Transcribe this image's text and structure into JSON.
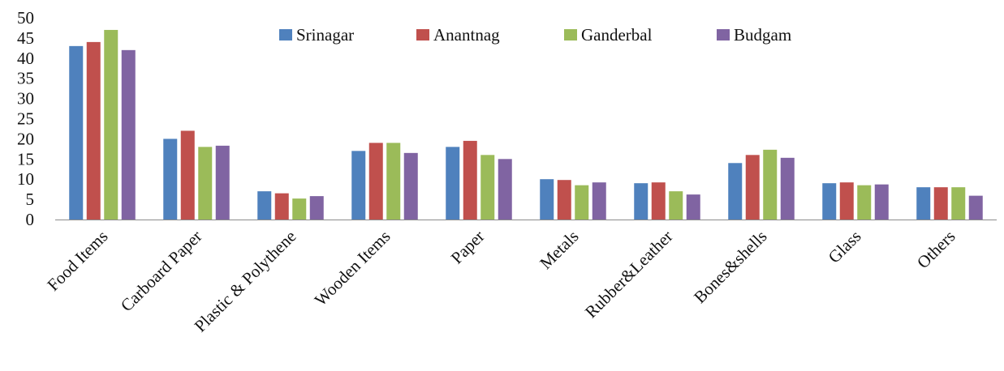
{
  "chart_data": {
    "type": "bar",
    "title": "",
    "xlabel": "",
    "ylabel": "",
    "ylim": [
      0,
      50
    ],
    "yticks": [
      0,
      5,
      10,
      15,
      20,
      25,
      30,
      35,
      40,
      45,
      50
    ],
    "grid": false,
    "legend_position": "top",
    "categories": [
      "Food Items",
      "Carboard Paper",
      "Plastic & Polythene",
      "Wooden Items",
      "Paper",
      "Metals",
      "Rubber&Leather",
      "Bones&shells",
      "Glass",
      "Others"
    ],
    "series": [
      {
        "name": "Srinagar",
        "color": "#4f81bd",
        "values": [
          43,
          20,
          7,
          17,
          18,
          10,
          9,
          14,
          9,
          8
        ]
      },
      {
        "name": "Anantnag",
        "color": "#c0504d",
        "values": [
          44,
          22,
          6.5,
          19,
          19.5,
          9.8,
          9.2,
          16,
          9.2,
          8
        ]
      },
      {
        "name": "Ganderbal",
        "color": "#9bbb59",
        "values": [
          47,
          18,
          5.2,
          19,
          16,
          8.5,
          7,
          17.3,
          8.5,
          8
        ]
      },
      {
        "name": "Budgam",
        "color": "#8064a2",
        "values": [
          42,
          18.3,
          5.8,
          16.5,
          15,
          9.2,
          6.2,
          15.3,
          8.7,
          5.9
        ]
      }
    ]
  }
}
